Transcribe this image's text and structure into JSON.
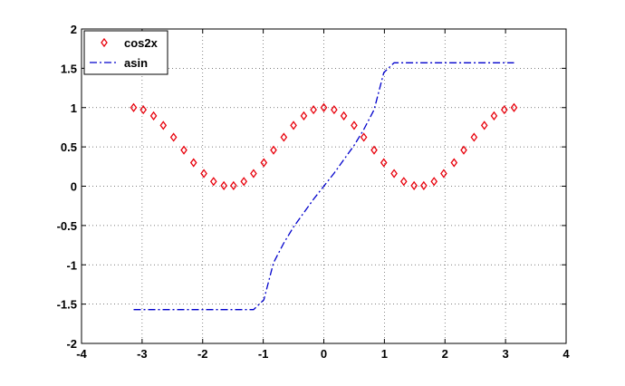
{
  "chart_data": {
    "type": "line",
    "x": [
      -3.14,
      -2.98,
      -2.81,
      -2.65,
      -2.48,
      -2.31,
      -2.15,
      -1.98,
      -1.82,
      -1.65,
      -1.49,
      -1.32,
      -1.16,
      -0.99,
      -0.83,
      -0.66,
      -0.5,
      -0.33,
      -0.17,
      0,
      0.17,
      0.33,
      0.5,
      0.66,
      0.83,
      0.99,
      1.16,
      1.32,
      1.49,
      1.65,
      1.82,
      1.98,
      2.15,
      2.31,
      2.48,
      2.65,
      2.81,
      2.98,
      3.14
    ],
    "series": [
      {
        "name": "cos2x",
        "color": "#e8000b",
        "marker": "diamond",
        "values": [
          1,
          0.973,
          0.895,
          0.774,
          0.623,
          0.459,
          0.299,
          0.161,
          0.06,
          0.007,
          0.007,
          0.06,
          0.161,
          0.299,
          0.459,
          0.623,
          0.774,
          0.895,
          0.973,
          1,
          0.973,
          0.895,
          0.774,
          0.623,
          0.459,
          0.299,
          0.161,
          0.06,
          0.007,
          0.007,
          0.06,
          0.161,
          0.299,
          0.459,
          0.623,
          0.774,
          0.895,
          0.973,
          1
        ]
      },
      {
        "name": "asin",
        "color": "#0000cc",
        "line": "dashdot",
        "values": [
          -1.57,
          -1.57,
          -1.57,
          -1.57,
          -1.57,
          -1.57,
          -1.57,
          -1.57,
          -1.57,
          -1.57,
          -1.57,
          -1.57,
          -1.57,
          -1.445,
          -0.973,
          -0.722,
          -0.519,
          -0.337,
          -0.166,
          0,
          0.166,
          0.337,
          0.519,
          0.722,
          0.973,
          1.445,
          1.57,
          1.57,
          1.57,
          1.57,
          1.57,
          1.57,
          1.57,
          1.57,
          1.57,
          1.57,
          1.57,
          1.57,
          1.57
        ]
      }
    ],
    "xlim": [
      -4,
      4
    ],
    "ylim": [
      -2,
      2
    ],
    "xticks": [
      -4,
      -3,
      -2,
      -1,
      0,
      1,
      2,
      3,
      4
    ],
    "yticks": [
      -2,
      -1.5,
      -1,
      -0.5,
      0,
      0.5,
      1,
      1.5,
      2
    ],
    "grid": true,
    "legend": "upper-left"
  }
}
